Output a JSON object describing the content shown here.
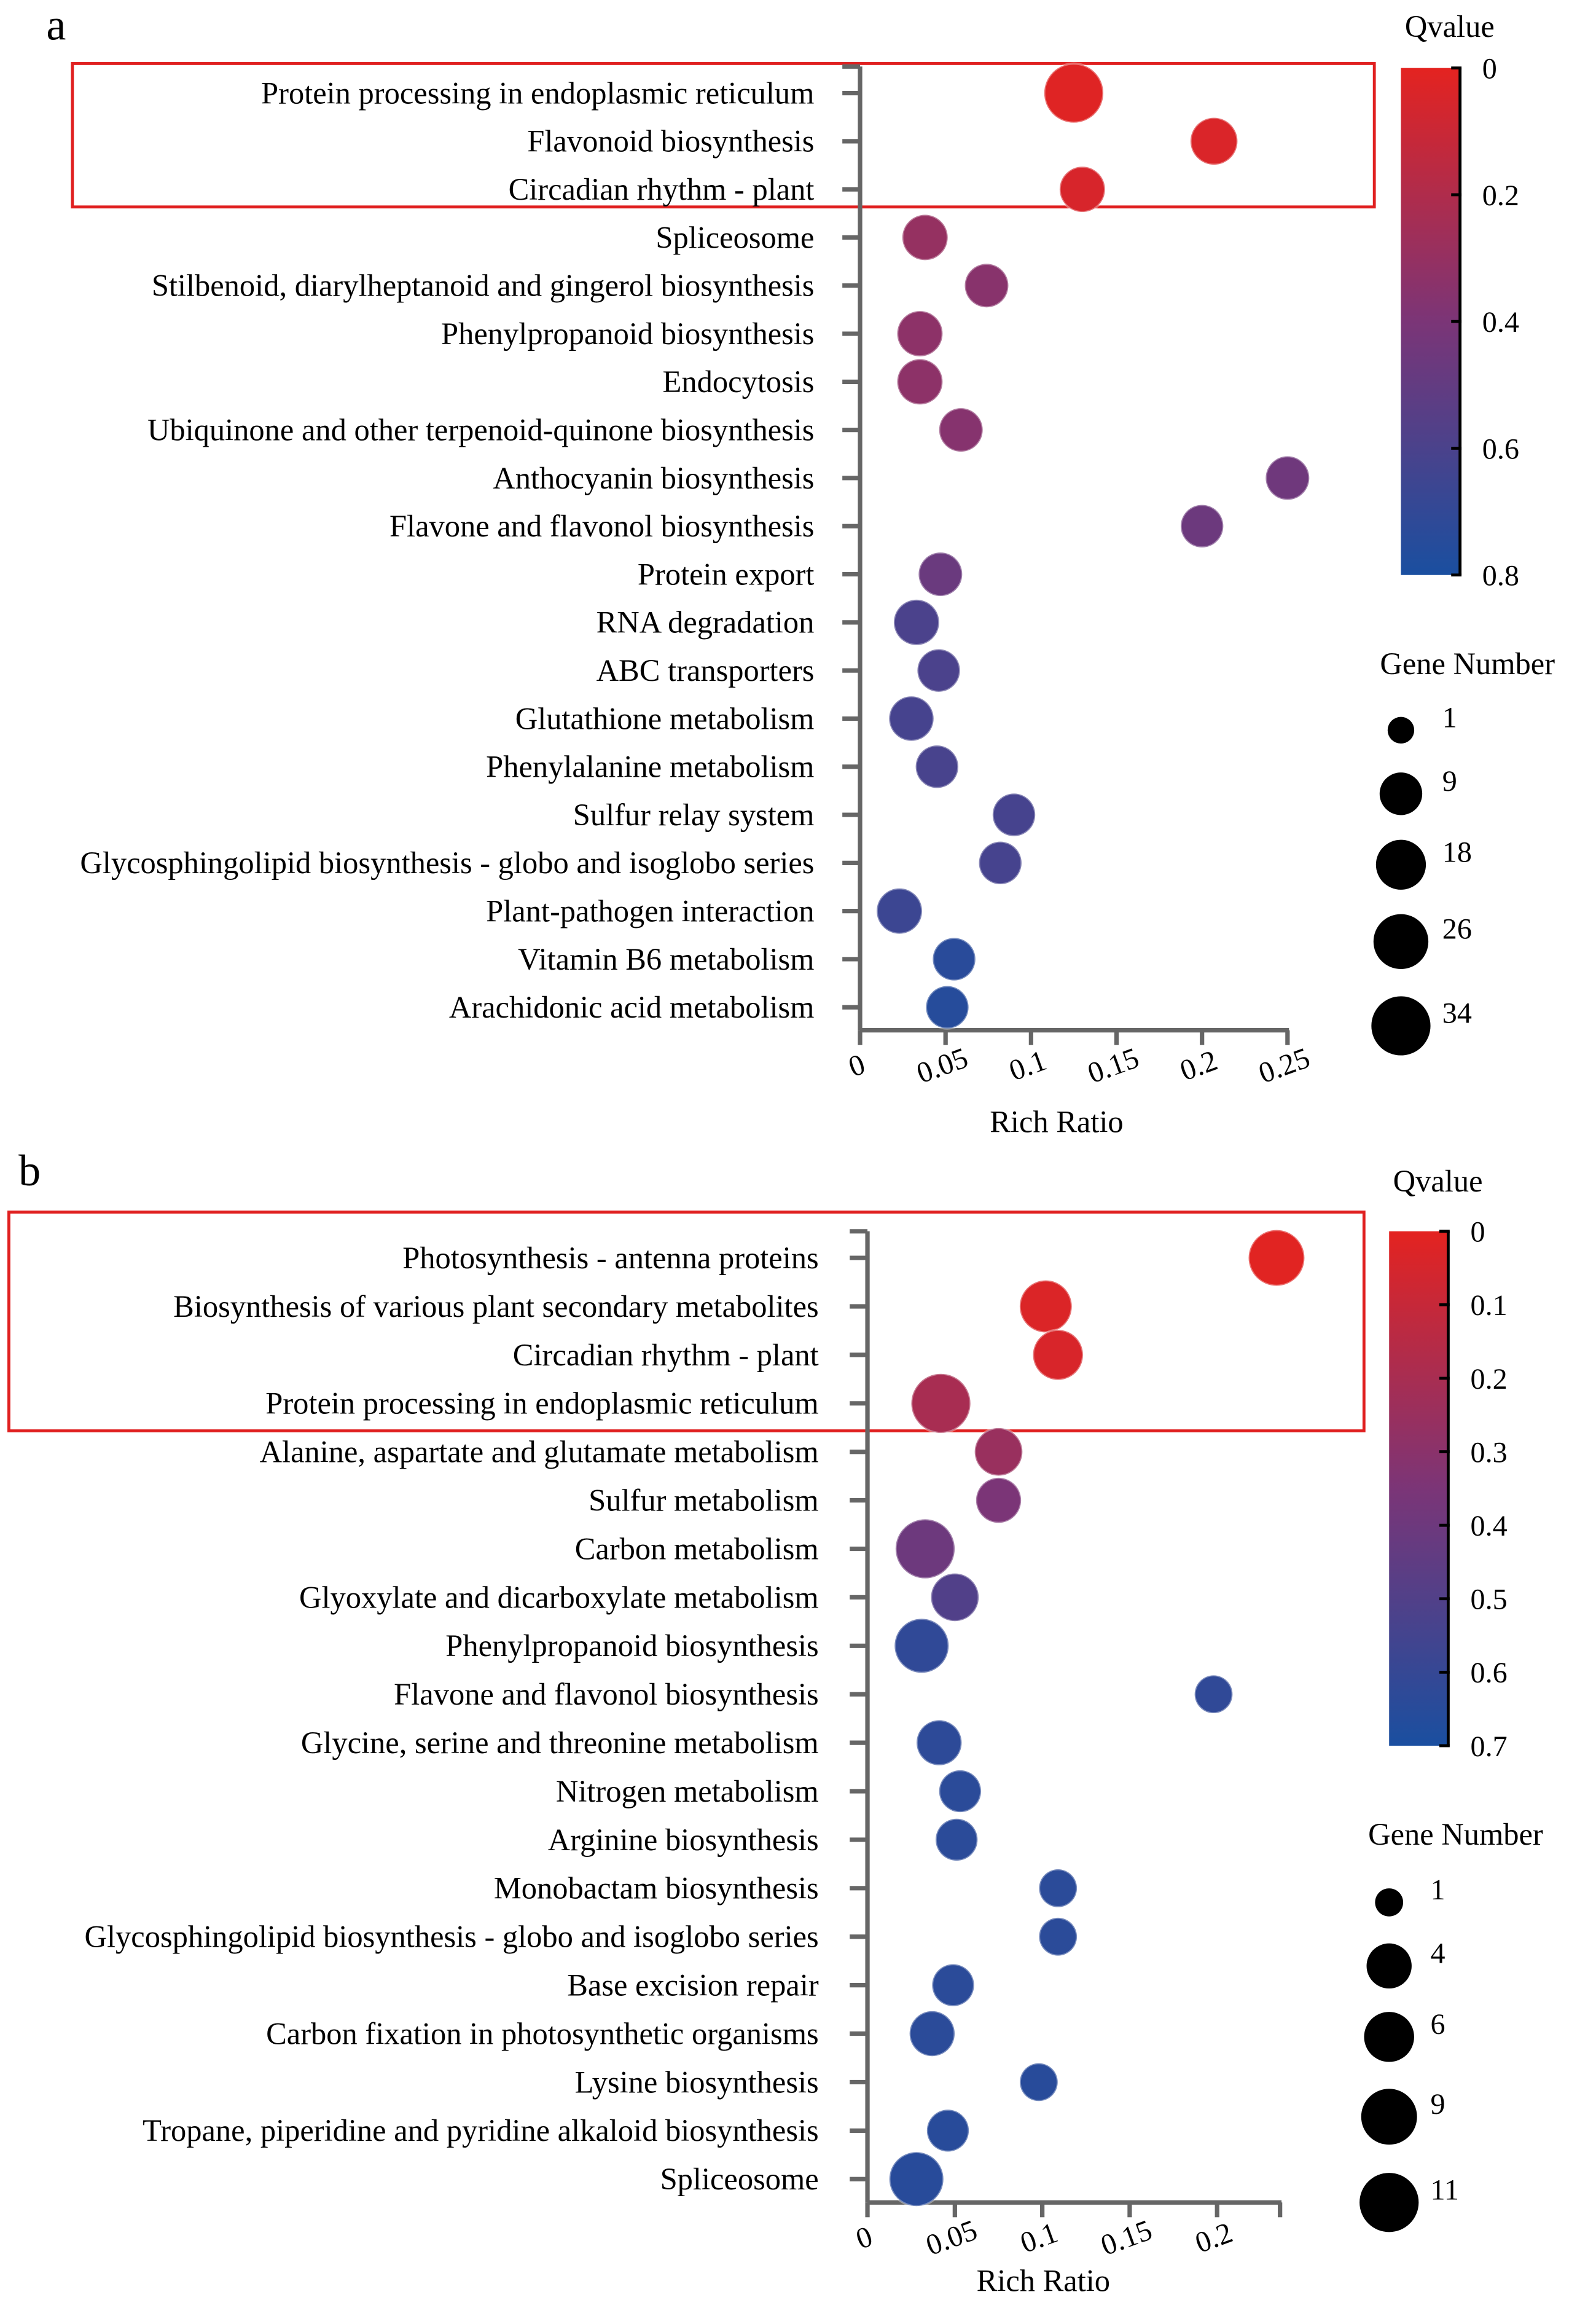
{
  "chart_data": [
    {
      "panel_label": "a",
      "type": "scatter",
      "subtype": "bubble",
      "xlabel": "Rich Ratio",
      "xlim": [
        0,
        0.25
      ],
      "xticks": [
        "0",
        "0.05",
        "0.1",
        "0.15",
        "0.2",
        "0.25"
      ],
      "grid": false,
      "highlight_box_rows": 3,
      "color_legend": {
        "title": "Qvalue",
        "range": [
          0,
          0.8
        ],
        "ticks": [
          "0",
          "0.2",
          "0.4",
          "0.6",
          "0.8"
        ],
        "low_color": "#e42320",
        "mid_color": "#7b3577",
        "high_color": "#1a4fa0"
      },
      "size_legend": {
        "title": "Gene Number",
        "values": [
          1,
          9,
          18,
          26,
          34
        ]
      },
      "categories": [
        "Protein processing in endoplasmic reticulum",
        "Flavonoid biosynthesis",
        "Circadian rhythm - plant",
        "Spliceosome",
        "Stilbenoid, diarylheptanoid and gingerol biosynthesis",
        "Phenylpropanoid biosynthesis",
        "Endocytosis",
        "Ubiquinone and other terpenoid-quinone biosynthesis",
        "Anthocyanin biosynthesis",
        "Flavone and flavonol biosynthesis",
        "Protein export",
        "RNA degradation",
        "ABC transporters",
        "Glutathione metabolism",
        "Phenylalanine metabolism",
        "Sulfur relay system",
        "Glycosphingolipid biosynthesis - globo and isoglobo series",
        "Plant-pathogen interaction",
        "Vitamin B6 metabolism",
        "Arachidonic acid metabolism"
      ],
      "rich_ratio": [
        0.125,
        0.207,
        0.13,
        0.038,
        0.074,
        0.035,
        0.035,
        0.059,
        0.25,
        0.2,
        0.047,
        0.033,
        0.046,
        0.03,
        0.045,
        0.09,
        0.082,
        0.023,
        0.055,
        0.051
      ],
      "qvalue": [
        0.02,
        0.04,
        0.05,
        0.3,
        0.35,
        0.33,
        0.33,
        0.36,
        0.45,
        0.46,
        0.47,
        0.6,
        0.6,
        0.62,
        0.61,
        0.62,
        0.62,
        0.66,
        0.74,
        0.75
      ],
      "gene_number": [
        34,
        14,
        12,
        12,
        10,
        12,
        12,
        10,
        10,
        9,
        10,
        12,
        9,
        11,
        9,
        9,
        9,
        12,
        9,
        9
      ]
    },
    {
      "panel_label": "b",
      "type": "scatter",
      "subtype": "bubble",
      "xlabel": "Rich Ratio",
      "xlim": [
        0,
        0.236
      ],
      "xticks": [
        "0",
        "0.05",
        "0.1",
        "0.15",
        "0.2",
        ""
      ],
      "grid": false,
      "highlight_box_rows": 4,
      "color_legend": {
        "title": "Qvalue",
        "range": [
          0,
          0.7
        ],
        "ticks": [
          "0",
          "0.1",
          "0.2",
          "0.3",
          "0.4",
          "0.5",
          "0.6",
          "0.7"
        ],
        "low_color": "#e42320",
        "mid_color": "#7b3577",
        "high_color": "#1a4fa0"
      },
      "size_legend": {
        "title": "Gene Number",
        "values": [
          1,
          4,
          6,
          9,
          11
        ]
      },
      "categories": [
        "Photosynthesis - antenna proteins",
        "Biosynthesis of various plant secondary metabolites",
        "Circadian rhythm - plant",
        "Protein processing in endoplasmic reticulum",
        "Alanine, aspartate and glutamate metabolism",
        "Sulfur metabolism",
        "Carbon metabolism",
        "Glyoxylate and dicarboxylate metabolism",
        "Phenylpropanoid biosynthesis",
        "Flavone and flavonol biosynthesis",
        "Glycine, serine and threonine metabolism",
        "Nitrogen metabolism",
        "Arginine biosynthesis",
        "Monobactam biosynthesis",
        "Glycosphingolipid biosynthesis - globo and isoglobo series",
        "Base excision repair",
        "Carbon fixation in photosynthetic organisms",
        "Lysine biosynthesis",
        "Tropane, piperidine and pyridine alkaloid biosynthesis",
        "Spliceosome"
      ],
      "rich_ratio": [
        0.234,
        0.102,
        0.109,
        0.042,
        0.075,
        0.075,
        0.033,
        0.05,
        0.031,
        0.198,
        0.041,
        0.053,
        0.051,
        0.109,
        0.109,
        0.049,
        0.037,
        0.098,
        0.046,
        0.028
      ],
      "qvalue": [
        0.01,
        0.03,
        0.04,
        0.2,
        0.25,
        0.35,
        0.4,
        0.5,
        0.62,
        0.62,
        0.63,
        0.64,
        0.64,
        0.64,
        0.64,
        0.64,
        0.64,
        0.65,
        0.65,
        0.65
      ],
      "gene_number": [
        9,
        7,
        6,
        11,
        5,
        4,
        11,
        5,
        8,
        2,
        4,
        3,
        3,
        2,
        2,
        3,
        4,
        2,
        3,
        8
      ]
    }
  ]
}
